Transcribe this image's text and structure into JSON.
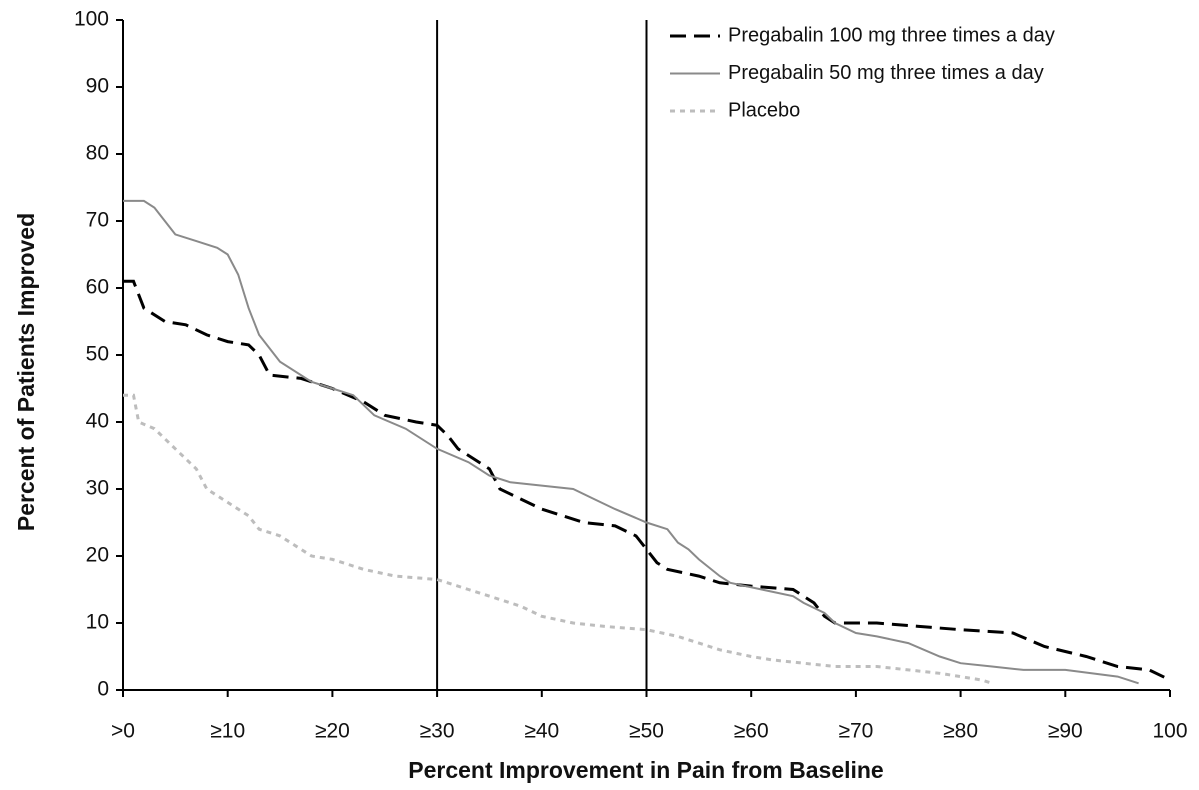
{
  "chart_data": {
    "type": "line",
    "xlabel": "Percent Improvement in Pain from Baseline",
    "ylabel": "Percent of Patients Improved",
    "xlim": [
      0,
      100
    ],
    "ylim": [
      0,
      100
    ],
    "xticks": [
      {
        "value": 0,
        "label": ">0"
      },
      {
        "value": 10,
        "label": "≥10"
      },
      {
        "value": 20,
        "label": "≥20"
      },
      {
        "value": 30,
        "label": "≥30"
      },
      {
        "value": 40,
        "label": "≥40"
      },
      {
        "value": 50,
        "label": "≥50"
      },
      {
        "value": 60,
        "label": "≥60"
      },
      {
        "value": 70,
        "label": "≥70"
      },
      {
        "value": 80,
        "label": "≥80"
      },
      {
        "value": 90,
        "label": "≥90"
      },
      100
    ],
    "yticks": [
      0,
      10,
      20,
      30,
      40,
      50,
      60,
      70,
      80,
      90,
      100
    ],
    "vlines": [
      30,
      50
    ],
    "legend": "upper right",
    "series": [
      {
        "name": "Pregabalin 100 mg three times a day",
        "color": "#000000",
        "dash": "dashed",
        "x": [
          0,
          1,
          2,
          4,
          6,
          8,
          10,
          12,
          13,
          14,
          17,
          20,
          23,
          25,
          28,
          30,
          31,
          32,
          35,
          36,
          38,
          40,
          42,
          44,
          47,
          49,
          50,
          51,
          52,
          55,
          57,
          60,
          64,
          66,
          67,
          68,
          72,
          76,
          80,
          85,
          88,
          92,
          95,
          98,
          100
        ],
        "values": [
          61,
          61,
          57,
          55,
          54.5,
          53,
          52,
          51.5,
          50,
          47,
          46.5,
          45,
          43,
          41,
          40,
          39.5,
          38,
          36,
          33,
          30,
          28.5,
          27,
          26,
          25,
          24.5,
          23,
          21,
          19,
          18,
          17,
          16,
          15.5,
          15,
          13,
          11,
          10,
          10,
          9.5,
          9,
          8.5,
          6.5,
          5,
          3.5,
          3,
          1.5
        ]
      },
      {
        "name": "Pregabalin 50 mg three times a day",
        "color": "#8a8a8a",
        "dash": "solid",
        "x": [
          0,
          1,
          2,
          3,
          5,
          7,
          9,
          10,
          11,
          12,
          13,
          15,
          18,
          20,
          22,
          24,
          27,
          30,
          33,
          35,
          37,
          40,
          43,
          45,
          47,
          50,
          52,
          53,
          54,
          55,
          57,
          58,
          61,
          64,
          65,
          67,
          68,
          70,
          72,
          75,
          78,
          80,
          83,
          86,
          90,
          95,
          97
        ],
        "values": [
          73,
          73,
          73,
          72,
          68,
          67,
          66,
          65,
          62,
          57,
          53,
          49,
          46,
          45,
          44,
          41,
          39,
          36,
          34,
          32,
          31,
          30.5,
          30,
          28.5,
          27,
          25,
          24,
          22,
          21,
          19.5,
          17,
          16,
          15,
          14,
          13,
          11.5,
          10,
          8.5,
          8,
          7,
          5,
          4,
          3.5,
          3,
          3,
          2,
          1
        ]
      },
      {
        "name": "Placebo",
        "color": "#bdbdbd",
        "dash": "dotted",
        "x": [
          0,
          1,
          1.5,
          3,
          5,
          7,
          8,
          10,
          12,
          13,
          15,
          18,
          20,
          23,
          26,
          30,
          33,
          36,
          38,
          40,
          43,
          46,
          50,
          53,
          55,
          57,
          60,
          62,
          65,
          68,
          72,
          75,
          78,
          80,
          82,
          83
        ],
        "values": [
          44,
          44,
          40,
          39,
          36,
          33,
          30,
          28,
          26,
          24,
          23,
          20,
          19.5,
          18,
          17,
          16.5,
          15,
          13.5,
          12.5,
          11,
          10,
          9.5,
          9,
          8,
          7,
          6,
          5,
          4.5,
          4,
          3.5,
          3.5,
          3,
          2.5,
          2,
          1.5,
          1
        ]
      }
    ]
  }
}
